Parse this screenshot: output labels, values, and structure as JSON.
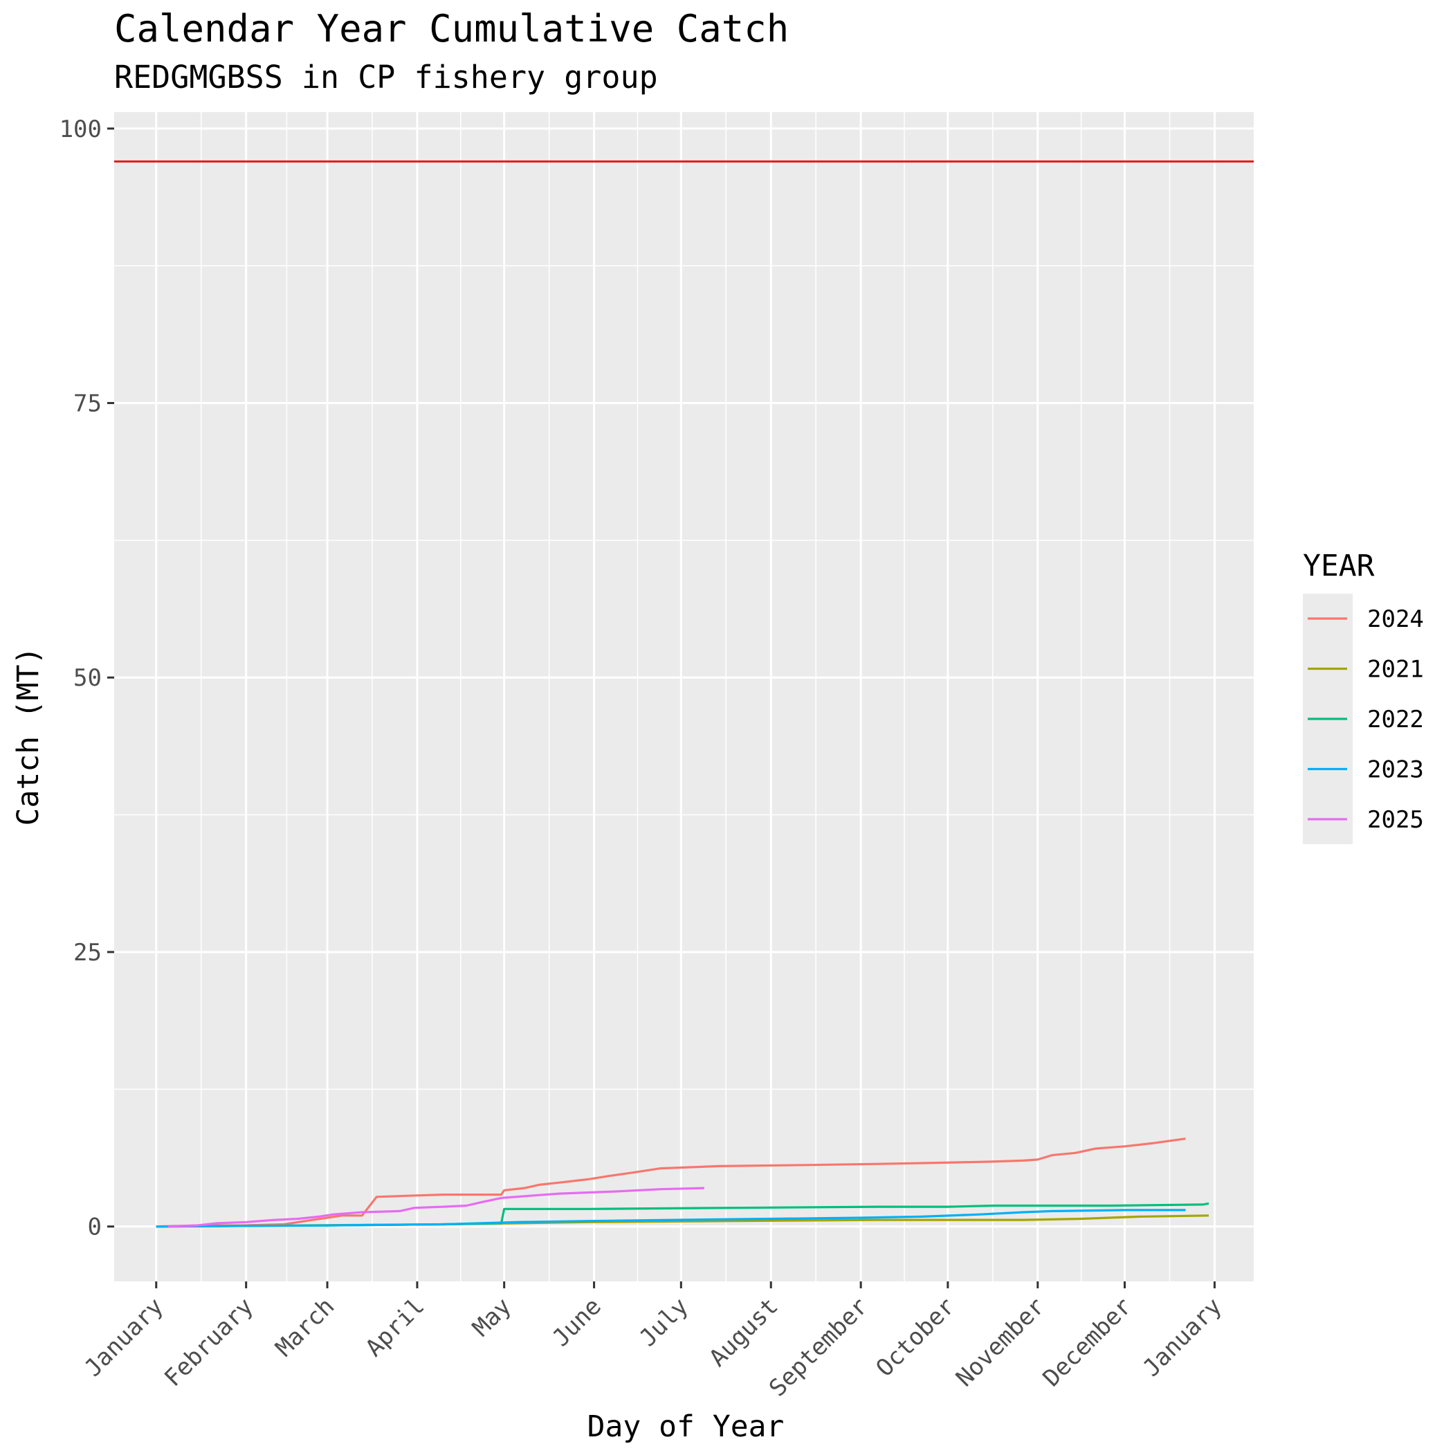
{
  "chart_data": {
    "type": "line",
    "title": "Calendar Year Cumulative Catch",
    "subtitle": "REDGMGBSS in CP fishery group",
    "xlabel": "Day of Year",
    "ylabel": "Catch (MT)",
    "x_unit": "day of year",
    "xlim": [
      -13.5,
      379.5
    ],
    "ylim": [
      -5,
      101.5
    ],
    "y_ticks": [
      0,
      25,
      50,
      75,
      100
    ],
    "x_ticks": [
      {
        "label": "January",
        "day": 1
      },
      {
        "label": "February",
        "day": 32
      },
      {
        "label": "March",
        "day": 60
      },
      {
        "label": "April",
        "day": 91
      },
      {
        "label": "May",
        "day": 121
      },
      {
        "label": "June",
        "day": 152
      },
      {
        "label": "July",
        "day": 182
      },
      {
        "label": "August",
        "day": 213
      },
      {
        "label": "September",
        "day": 244
      },
      {
        "label": "October",
        "day": 274
      },
      {
        "label": "November",
        "day": 305
      },
      {
        "label": "December",
        "day": 335
      },
      {
        "label": "January",
        "day": 366
      }
    ],
    "grid": true,
    "legend_title": "YEAR",
    "legend_position": "right",
    "reference_line": {
      "y": 97,
      "color": "#e41a1c"
    },
    "series": [
      {
        "name": "2024",
        "color": "#f8766d",
        "points": [
          [
            1,
            0
          ],
          [
            15,
            0.1
          ],
          [
            30,
            0.1
          ],
          [
            45,
            0.2
          ],
          [
            55,
            0.6
          ],
          [
            60,
            0.8
          ],
          [
            65,
            1
          ],
          [
            72,
            1
          ],
          [
            77,
            2.7
          ],
          [
            88,
            2.8
          ],
          [
            100,
            2.9
          ],
          [
            120,
            2.9
          ],
          [
            121,
            3.3
          ],
          [
            128,
            3.5
          ],
          [
            133,
            3.8
          ],
          [
            140,
            4
          ],
          [
            150,
            4.3
          ],
          [
            157,
            4.6
          ],
          [
            165,
            4.9
          ],
          [
            175,
            5.3
          ],
          [
            185,
            5.4
          ],
          [
            195,
            5.5
          ],
          [
            225,
            5.6
          ],
          [
            250,
            5.7
          ],
          [
            270,
            5.8
          ],
          [
            288,
            5.9
          ],
          [
            300,
            6
          ],
          [
            305,
            6.1
          ],
          [
            310,
            6.5
          ],
          [
            318,
            6.7
          ],
          [
            325,
            7.1
          ],
          [
            335,
            7.3
          ],
          [
            345,
            7.6
          ],
          [
            356,
            8
          ]
        ]
      },
      {
        "name": "2021",
        "color": "#a3a500",
        "points": [
          [
            1,
            0
          ],
          [
            50,
            0.1
          ],
          [
            100,
            0.2
          ],
          [
            150,
            0.4
          ],
          [
            200,
            0.5
          ],
          [
            250,
            0.6
          ],
          [
            300,
            0.6
          ],
          [
            320,
            0.7
          ],
          [
            340,
            0.9
          ],
          [
            364,
            1
          ]
        ]
      },
      {
        "name": "2022",
        "color": "#00bf7d",
        "points": [
          [
            1,
            0
          ],
          [
            60,
            0.1
          ],
          [
            100,
            0.2
          ],
          [
            120,
            0.3
          ],
          [
            121,
            1.6
          ],
          [
            150,
            1.6
          ],
          [
            200,
            1.7
          ],
          [
            250,
            1.8
          ],
          [
            274,
            1.8
          ],
          [
            290,
            1.9
          ],
          [
            330,
            1.9
          ],
          [
            362,
            2
          ],
          [
            364,
            2.1
          ]
        ]
      },
      {
        "name": "2023",
        "color": "#00b0f6",
        "points": [
          [
            1,
            0
          ],
          [
            60,
            0.1
          ],
          [
            100,
            0.2
          ],
          [
            125,
            0.4
          ],
          [
            150,
            0.5
          ],
          [
            180,
            0.6
          ],
          [
            213,
            0.7
          ],
          [
            244,
            0.8
          ],
          [
            265,
            0.9
          ],
          [
            285,
            1.1
          ],
          [
            300,
            1.3
          ],
          [
            310,
            1.4
          ],
          [
            335,
            1.5
          ],
          [
            356,
            1.5
          ]
        ]
      },
      {
        "name": "2025",
        "color": "#e76bf3",
        "points": [
          [
            5,
            0
          ],
          [
            15,
            0.1
          ],
          [
            22,
            0.3
          ],
          [
            32,
            0.4
          ],
          [
            42,
            0.6
          ],
          [
            50,
            0.7
          ],
          [
            57,
            0.9
          ],
          [
            62,
            1.1
          ],
          [
            72,
            1.3
          ],
          [
            85,
            1.4
          ],
          [
            90,
            1.7
          ],
          [
            100,
            1.8
          ],
          [
            108,
            1.9
          ],
          [
            113,
            2.2
          ],
          [
            120,
            2.6
          ],
          [
            130,
            2.8
          ],
          [
            140,
            3
          ],
          [
            150,
            3.1
          ],
          [
            160,
            3.2
          ],
          [
            175,
            3.4
          ],
          [
            190,
            3.5
          ]
        ]
      }
    ],
    "legend_order": [
      "2024",
      "2021",
      "2022",
      "2023",
      "2025"
    ]
  }
}
